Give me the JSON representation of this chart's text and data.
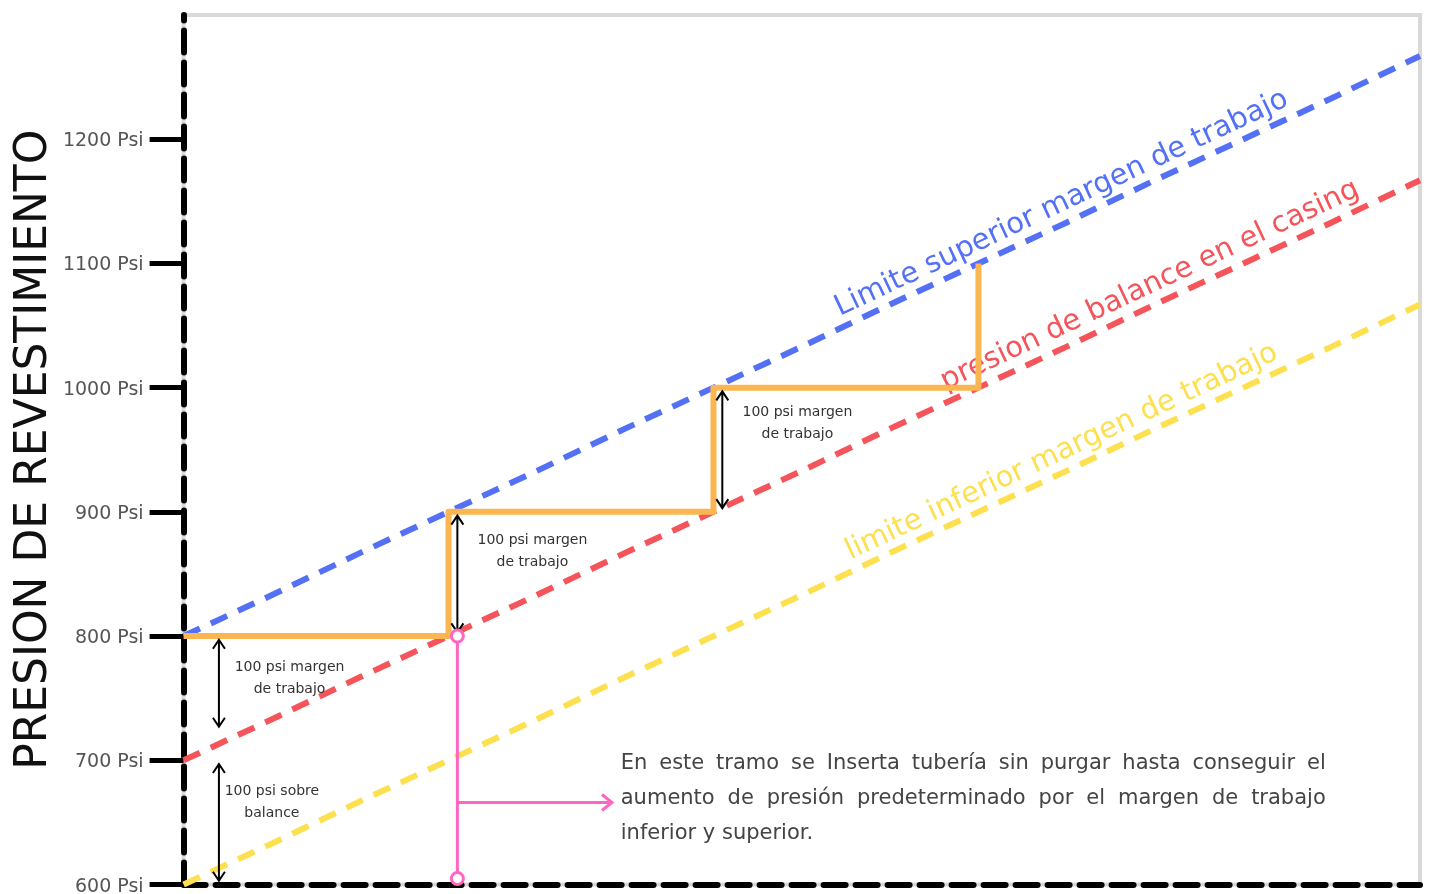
{
  "chart_data": {
    "type": "line",
    "ylabel": "PRESION DE REVESTIMIENTO",
    "categories": [
      null,
      null,
      null,
      null,
      null,
      null,
      null,
      null,
      null,
      null,
      null,
      null,
      null,
      null,
      null
    ],
    "ylim": [
      600,
      1300
    ],
    "yticks": [
      {
        "value": 600,
        "label": "600 Psi"
      },
      {
        "value": 700,
        "label": "700 Psi"
      },
      {
        "value": 800,
        "label": "800 Psi"
      },
      {
        "value": 900,
        "label": "900 Psi"
      },
      {
        "value": 1000,
        "label": "1000 Psi"
      },
      {
        "value": 1100,
        "label": "1100 Psi"
      },
      {
        "value": 1200,
        "label": "1200 Psi"
      }
    ],
    "grid": false,
    "marker": "none",
    "tick_labels": "y",
    "series": [
      {
        "name": "Limite superior margen de trabajo",
        "color": "#5470f5",
        "line_style": "dashed",
        "values": [
          800,
          833,
          867,
          900,
          933,
          967,
          1000,
          1033,
          1067,
          1100,
          1133,
          1167,
          1200,
          1233,
          1267
        ]
      },
      {
        "name": "presion de balance en el casing",
        "color": "#f5545a",
        "line_style": "dashed",
        "values": [
          700,
          733,
          767,
          800,
          833,
          867,
          900,
          933,
          967,
          1000,
          1033,
          1067,
          1100,
          1133,
          1167
        ]
      },
      {
        "name": "limite inferior margen de trabajo",
        "color": "#fde050",
        "line_style": "dashed",
        "values": [
          600,
          633,
          667,
          700,
          733,
          767,
          800,
          833,
          867,
          900,
          933,
          967,
          1000,
          1033,
          1067
        ]
      },
      {
        "type": "step",
        "color": "#fbb652",
        "line_style": "solid",
        "values": [
          800,
          800,
          800,
          900,
          900,
          900,
          1000,
          1000,
          1000,
          1100,
          null,
          null,
          null,
          null,
          null
        ]
      }
    ],
    "annotations": [
      "100 psi margen de trabajo",
      "100 psi margen de trabajo",
      "100 psi margen de trabajo",
      "100 psi sobre balance",
      "En este tramo se Inserta tubería sin purgar hasta conseguir el aumento de presión predeterminado por el margen de trabajo inferior y superior."
    ]
  }
}
